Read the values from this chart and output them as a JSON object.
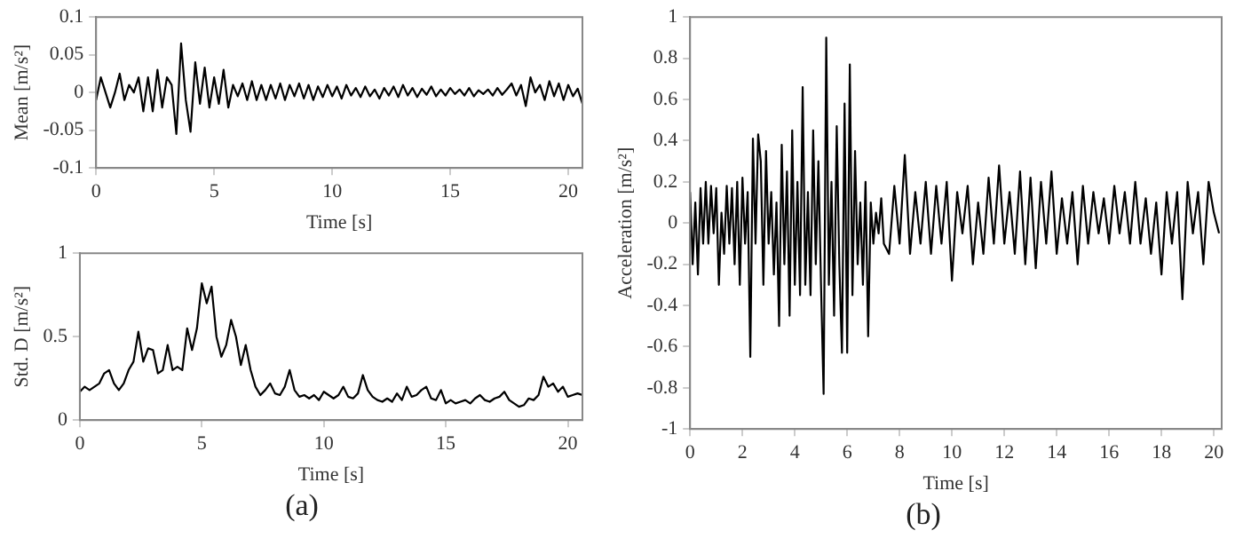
{
  "chart_data": [
    {
      "type": "line",
      "xlabel": "Time [s]",
      "ylabel": "Mean [m/s²]",
      "xlim": [
        0,
        20.6
      ],
      "xticks": [
        0,
        5,
        10,
        15,
        20
      ],
      "ylim": [
        -0.1,
        0.1
      ],
      "yticks": [
        -0.1,
        -0.05,
        0,
        0.05,
        0.1
      ],
      "x": [
        0,
        0.2,
        0.4,
        0.6,
        0.8,
        1,
        1.2,
        1.4,
        1.6,
        1.8,
        2,
        2.2,
        2.4,
        2.6,
        2.8,
        3,
        3.2,
        3.4,
        3.6,
        3.8,
        4,
        4.2,
        4.4,
        4.6,
        4.8,
        5,
        5.2,
        5.4,
        5.6,
        5.8,
        6,
        6.2,
        6.4,
        6.6,
        6.8,
        7,
        7.2,
        7.4,
        7.6,
        7.8,
        8,
        8.2,
        8.4,
        8.6,
        8.8,
        9,
        9.2,
        9.4,
        9.6,
        9.8,
        10,
        10.2,
        10.4,
        10.6,
        10.8,
        11,
        11.2,
        11.4,
        11.6,
        11.8,
        12,
        12.2,
        12.4,
        12.6,
        12.8,
        13,
        13.2,
        13.4,
        13.6,
        13.8,
        14,
        14.2,
        14.4,
        14.6,
        14.8,
        15,
        15.2,
        15.4,
        15.6,
        15.8,
        16,
        16.2,
        16.4,
        16.6,
        16.8,
        17,
        17.2,
        17.4,
        17.6,
        17.8,
        18,
        18.2,
        18.4,
        18.6,
        18.8,
        19,
        19.2,
        19.4,
        19.6,
        19.8,
        20,
        20.2,
        20.4,
        20.6
      ],
      "series": [
        {
          "color": "#000000",
          "values": [
            -0.01,
            0.02,
            0,
            -0.02,
            0,
            0.025,
            -0.01,
            0.01,
            0,
            0.02,
            -0.025,
            0.02,
            -0.025,
            0.03,
            -0.02,
            0.02,
            0.01,
            -0.055,
            0.065,
            -0.01,
            -0.052,
            0.04,
            -0.015,
            0.033,
            -0.02,
            0.02,
            -0.015,
            0.03,
            -0.02,
            0.01,
            -0.005,
            0.012,
            -0.01,
            0.015,
            -0.01,
            0.01,
            -0.01,
            0.01,
            -0.008,
            0.012,
            -0.01,
            0.01,
            -0.005,
            0.012,
            -0.008,
            0.01,
            -0.01,
            0.008,
            -0.006,
            0.01,
            -0.005,
            0.008,
            -0.008,
            0.01,
            -0.004,
            0.006,
            -0.006,
            0.008,
            -0.005,
            0.004,
            -0.008,
            0.006,
            -0.004,
            0.008,
            -0.006,
            0.01,
            -0.004,
            0.006,
            -0.006,
            0.005,
            -0.003,
            0.008,
            -0.005,
            0.004,
            -0.004,
            0.006,
            -0.002,
            0.004,
            -0.004,
            0.006,
            -0.005,
            0.003,
            -0.002,
            0.004,
            -0.004,
            0.006,
            -0.003,
            0.004,
            0.012,
            -0.004,
            0.01,
            -0.018,
            0.02,
            0,
            0.01,
            -0.01,
            0.015,
            -0.005,
            0.012,
            -0.01,
            0.01,
            -0.005,
            0.005,
            -0.015
          ]
        }
      ]
    },
    {
      "type": "line",
      "xlabel": "Time [s]",
      "ylabel": "Std. D [m/s²]",
      "xlim": [
        0,
        20.6
      ],
      "xticks": [
        0,
        5,
        10,
        15,
        20
      ],
      "ylim": [
        0,
        1
      ],
      "yticks": [
        0,
        0.5,
        1
      ],
      "annotations": [
        "(a)"
      ],
      "x": [
        0,
        0.2,
        0.4,
        0.6,
        0.8,
        1,
        1.2,
        1.4,
        1.6,
        1.8,
        2,
        2.2,
        2.4,
        2.6,
        2.8,
        3,
        3.2,
        3.4,
        3.6,
        3.8,
        4,
        4.2,
        4.4,
        4.6,
        4.8,
        5,
        5.2,
        5.4,
        5.6,
        5.8,
        6,
        6.2,
        6.4,
        6.6,
        6.8,
        7,
        7.2,
        7.4,
        7.6,
        7.8,
        8,
        8.2,
        8.4,
        8.6,
        8.8,
        9,
        9.2,
        9.4,
        9.6,
        9.8,
        10,
        10.2,
        10.4,
        10.6,
        10.8,
        11,
        11.2,
        11.4,
        11.6,
        11.8,
        12,
        12.2,
        12.4,
        12.6,
        12.8,
        13,
        13.2,
        13.4,
        13.6,
        13.8,
        14,
        14.2,
        14.4,
        14.6,
        14.8,
        15,
        15.2,
        15.4,
        15.6,
        15.8,
        16,
        16.2,
        16.4,
        16.6,
        16.8,
        17,
        17.2,
        17.4,
        17.6,
        17.8,
        18,
        18.2,
        18.4,
        18.6,
        18.8,
        19,
        19.2,
        19.4,
        19.6,
        19.8,
        20,
        20.2,
        20.4,
        20.6
      ],
      "series": [
        {
          "color": "#000000",
          "values": [
            0.17,
            0.2,
            0.18,
            0.2,
            0.22,
            0.28,
            0.3,
            0.22,
            0.18,
            0.22,
            0.3,
            0.35,
            0.53,
            0.35,
            0.43,
            0.42,
            0.28,
            0.3,
            0.45,
            0.3,
            0.32,
            0.3,
            0.55,
            0.42,
            0.55,
            0.82,
            0.7,
            0.8,
            0.5,
            0.38,
            0.45,
            0.6,
            0.5,
            0.33,
            0.45,
            0.3,
            0.2,
            0.15,
            0.18,
            0.22,
            0.16,
            0.15,
            0.2,
            0.3,
            0.18,
            0.14,
            0.15,
            0.13,
            0.15,
            0.12,
            0.17,
            0.15,
            0.13,
            0.15,
            0.2,
            0.14,
            0.13,
            0.16,
            0.27,
            0.18,
            0.14,
            0.12,
            0.11,
            0.13,
            0.11,
            0.16,
            0.12,
            0.2,
            0.14,
            0.15,
            0.18,
            0.2,
            0.13,
            0.12,
            0.18,
            0.1,
            0.12,
            0.1,
            0.11,
            0.12,
            0.1,
            0.13,
            0.15,
            0.12,
            0.11,
            0.13,
            0.14,
            0.17,
            0.12,
            0.1,
            0.08,
            0.09,
            0.13,
            0.12,
            0.15,
            0.26,
            0.2,
            0.22,
            0.17,
            0.2,
            0.14,
            0.15,
            0.16,
            0.15
          ]
        }
      ]
    },
    {
      "type": "line",
      "xlabel": "Time [s]",
      "ylabel": "Acceleration [m/s²]",
      "xlim": [
        0,
        20.3
      ],
      "xticks": [
        0,
        2,
        4,
        6,
        8,
        10,
        12,
        14,
        16,
        18,
        20
      ],
      "ylim": [
        -1,
        1
      ],
      "yticks": [
        -1,
        -0.8,
        -0.6,
        -0.4,
        -0.2,
        0,
        0.2,
        0.4,
        0.6,
        0.8,
        1
      ],
      "annotations": [
        "(b)"
      ],
      "x": [
        0,
        0.1,
        0.2,
        0.3,
        0.4,
        0.5,
        0.6,
        0.7,
        0.8,
        0.9,
        1,
        1.1,
        1.2,
        1.3,
        1.4,
        1.5,
        1.6,
        1.7,
        1.8,
        1.9,
        2,
        2.1,
        2.2,
        2.3,
        2.4,
        2.5,
        2.6,
        2.7,
        2.8,
        2.9,
        3,
        3.1,
        3.2,
        3.3,
        3.4,
        3.5,
        3.6,
        3.7,
        3.8,
        3.9,
        4,
        4.1,
        4.2,
        4.3,
        4.4,
        4.5,
        4.6,
        4.7,
        4.8,
        4.9,
        5,
        5.1,
        5.2,
        5.3,
        5.4,
        5.5,
        5.6,
        5.7,
        5.8,
        5.9,
        6,
        6.1,
        6.2,
        6.3,
        6.4,
        6.5,
        6.6,
        6.7,
        6.8,
        6.9,
        7,
        7.1,
        7.2,
        7.3,
        7.4,
        7.6,
        7.8,
        8,
        8.2,
        8.4,
        8.6,
        8.8,
        9,
        9.2,
        9.4,
        9.6,
        9.8,
        10,
        10.2,
        10.4,
        10.6,
        10.8,
        11,
        11.2,
        11.4,
        11.6,
        11.8,
        12,
        12.2,
        12.4,
        12.6,
        12.8,
        13,
        13.2,
        13.4,
        13.6,
        13.8,
        14,
        14.2,
        14.4,
        14.6,
        14.8,
        15,
        15.2,
        15.4,
        15.6,
        15.8,
        16,
        16.2,
        16.4,
        16.6,
        16.8,
        17,
        17.2,
        17.4,
        17.6,
        17.8,
        18,
        18.2,
        18.4,
        18.6,
        18.8,
        19,
        19.2,
        19.4,
        19.6,
        19.8,
        20,
        20.2
      ],
      "series": [
        {
          "color": "#000000",
          "values": [
            0.15,
            -0.2,
            0.1,
            -0.25,
            0.17,
            -0.1,
            0.2,
            -0.1,
            0.18,
            -0.05,
            0.17,
            -0.3,
            0.05,
            -0.15,
            0.18,
            -0.1,
            0.17,
            -0.2,
            0.2,
            -0.3,
            0.22,
            -0.1,
            0.15,
            -0.65,
            0.41,
            -0.1,
            0.43,
            0.3,
            -0.3,
            0.35,
            -0.1,
            0.15,
            -0.25,
            0.1,
            -0.5,
            0.38,
            -0.2,
            0.25,
            -0.45,
            0.45,
            -0.3,
            0.2,
            -0.35,
            0.66,
            -0.3,
            0.15,
            -0.35,
            0.45,
            -0.2,
            0.3,
            -0.3,
            -0.83,
            0.9,
            -0.3,
            0.2,
            -0.45,
            0.47,
            -0.2,
            -0.63,
            0.58,
            -0.63,
            0.77,
            -0.35,
            0.35,
            -0.2,
            0.1,
            -0.3,
            0.2,
            -0.55,
            0.1,
            -0.1,
            0.05,
            -0.05,
            0.12,
            -0.1,
            -0.15,
            0.18,
            -0.1,
            0.33,
            -0.15,
            0.15,
            -0.1,
            0.2,
            -0.15,
            0.18,
            -0.1,
            0.2,
            -0.28,
            0.15,
            -0.05,
            0.18,
            -0.2,
            0.1,
            -0.15,
            0.22,
            -0.1,
            0.28,
            -0.1,
            0.15,
            -0.15,
            0.25,
            -0.2,
            0.22,
            -0.22,
            0.2,
            -0.1,
            0.25,
            -0.15,
            0.12,
            -0.1,
            0.15,
            -0.2,
            0.18,
            -0.1,
            0.15,
            -0.05,
            0.12,
            -0.1,
            0.18,
            -0.05,
            0.15,
            -0.1,
            0.2,
            -0.1,
            0.12,
            -0.15,
            0.1,
            -0.25,
            0.15,
            -0.1,
            0.15,
            -0.37,
            0.2,
            -0.05,
            0.15,
            -0.2,
            0.2,
            0.05,
            -0.05
          ]
        }
      ]
    }
  ]
}
